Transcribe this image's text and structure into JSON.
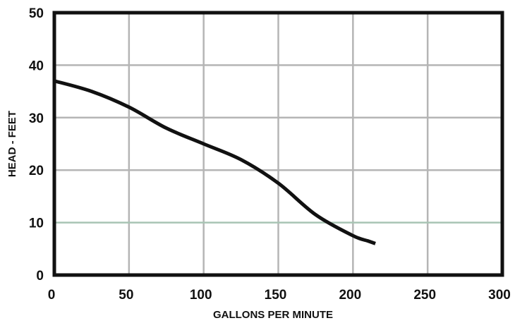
{
  "chart_data": {
    "type": "line",
    "title": "",
    "xlabel": "GALLONS PER MINUTE",
    "ylabel": "HEAD - FEET",
    "xlim": [
      0,
      300
    ],
    "ylim": [
      0,
      50
    ],
    "x_ticks": [
      0,
      50,
      100,
      150,
      200,
      250,
      300
    ],
    "y_ticks": [
      0,
      10,
      20,
      30,
      40,
      50
    ],
    "x_tick_labels": [
      "0",
      "50",
      "100",
      "150",
      "200",
      "250",
      "300"
    ],
    "y_tick_labels": [
      "0",
      "10",
      "20",
      "30",
      "40",
      "50"
    ],
    "grid": true,
    "legend": "none",
    "colors": {
      "curve": "#111111",
      "grid": "#b5b5b5",
      "frame": "#111111",
      "highlight_grid": "#a8c4b4"
    },
    "series": [
      {
        "x": [
          0,
          25,
          50,
          75,
          100,
          125,
          150,
          175,
          200,
          210,
          215
        ],
        "y": [
          37,
          35,
          32,
          28,
          25,
          22,
          17.5,
          11.5,
          7.5,
          6.5,
          6
        ]
      }
    ]
  }
}
